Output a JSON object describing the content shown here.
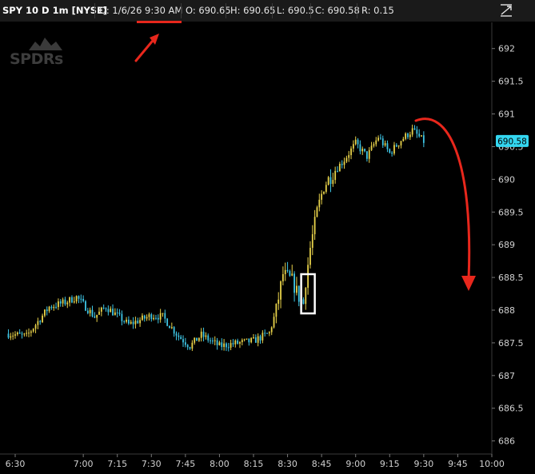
{
  "header": {
    "symbol": "SPY 10 D 1m [NYSE]",
    "date_time": "D: 1/6/26 9:30 AM",
    "open": "O: 690.65",
    "high": "H: 690.65",
    "low": "L: 690.5",
    "close": "C: 690.58",
    "range": "R: 0.15"
  },
  "watermark": "SPDRs",
  "last_price_tag": "690.58",
  "icons": {
    "expand": "expand-icon",
    "annotation_arrow_up": "red-arrow-up-icon",
    "annotation_arrow_down": "red-curved-arrow-down-icon"
  },
  "colors": {
    "background": "#000000",
    "up_candle": "#e8d24a",
    "down_candle": "#3ec6e6",
    "price_tag": "#33d6f0",
    "annotation": "#e8271c",
    "highlight_box": "#ffffff",
    "grid": "#262626"
  },
  "chart_data": {
    "type": "candlestick",
    "title": "",
    "xlabel": "",
    "ylabel": "",
    "x_ticks": [
      "6:30",
      "7:00",
      "7:15",
      "7:30",
      "7:45",
      "8:00",
      "8:15",
      "8:30",
      "8:45",
      "9:00",
      "9:15",
      "9:30",
      "9:45",
      "10:00"
    ],
    "y_ticks": [
      692,
      691.5,
      691,
      690.5,
      690,
      689.5,
      689,
      688.5,
      688,
      687.5,
      687,
      686.5,
      686
    ],
    "ylim": [
      685.8,
      692.4
    ],
    "x_range_minutes": [
      390,
      600
    ],
    "last_price": 690.58,
    "series": [
      {
        "values": [
          {
            "t": "6:27",
            "c": 687.64
          },
          {
            "t": "6:35",
            "c": 687.6
          },
          {
            "t": "6:45",
            "c": 688.05
          },
          {
            "t": "6:52",
            "c": 688.12
          },
          {
            "t": "6:57",
            "c": 688.2
          },
          {
            "t": "7:05",
            "c": 687.9
          },
          {
            "t": "7:10",
            "c": 688.05
          },
          {
            "t": "7:20",
            "c": 687.78
          },
          {
            "t": "7:30",
            "c": 687.92
          },
          {
            "t": "7:35",
            "c": 687.9
          },
          {
            "t": "7:42",
            "c": 687.6
          },
          {
            "t": "7:47",
            "c": 687.45
          },
          {
            "t": "7:52",
            "c": 687.62
          },
          {
            "t": "8:00",
            "c": 687.45
          },
          {
            "t": "8:05",
            "c": 687.48
          },
          {
            "t": "8:15",
            "c": 687.53
          },
          {
            "t": "8:22",
            "c": 687.65
          },
          {
            "t": "8:25",
            "c": 688.0
          },
          {
            "t": "8:28",
            "c": 688.55
          },
          {
            "t": "8:32",
            "c": 688.45
          },
          {
            "t": "8:35",
            "c": 688.2
          },
          {
            "t": "8:37",
            "c": 688.1
          },
          {
            "t": "8:38",
            "c": 688.45
          },
          {
            "t": "8:40",
            "c": 688.95
          },
          {
            "t": "8:43",
            "c": 689.5
          },
          {
            "t": "8:46",
            "c": 689.9
          },
          {
            "t": "8:50",
            "c": 690.1
          },
          {
            "t": "8:55",
            "c": 690.3
          },
          {
            "t": "9:00",
            "c": 690.55
          },
          {
            "t": "9:05",
            "c": 690.35
          },
          {
            "t": "9:10",
            "c": 690.65
          },
          {
            "t": "9:15",
            "c": 690.4
          },
          {
            "t": "9:20",
            "c": 690.6
          },
          {
            "t": "9:25",
            "c": 690.75
          },
          {
            "t": "9:30",
            "c": 690.58
          }
        ]
      }
    ],
    "highlight_box": {
      "t_start": "8:36",
      "t_end": "8:42",
      "low": 687.95,
      "high": 688.55
    },
    "header_underline_tick": "9:30"
  }
}
